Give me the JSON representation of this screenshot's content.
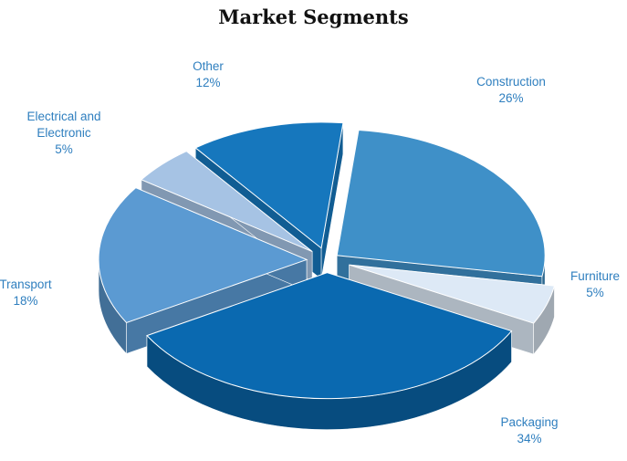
{
  "chart_data": {
    "type": "pie",
    "title": "Market Segments",
    "slices": [
      {
        "label": "Construction",
        "value": 26,
        "display": "26%",
        "color": "#3f90c8"
      },
      {
        "label": "Furniture",
        "value": 5,
        "display": "5%",
        "color": "#dde9f6"
      },
      {
        "label": "Packaging",
        "value": 34,
        "display": "34%",
        "color": "#0a69b0"
      },
      {
        "label": "Transport",
        "value": 18,
        "display": "18%",
        "color": "#5b9ad2"
      },
      {
        "label": "Electrical and Electronic",
        "label_lines": [
          "Electrical and",
          "Electronic"
        ],
        "value": 5,
        "display": "5%",
        "color": "#a6c3e4"
      },
      {
        "label": "Other",
        "value": 12,
        "display": "12%",
        "color": "#1677bd"
      }
    ],
    "style": "3d-exploded",
    "legend": "none"
  }
}
